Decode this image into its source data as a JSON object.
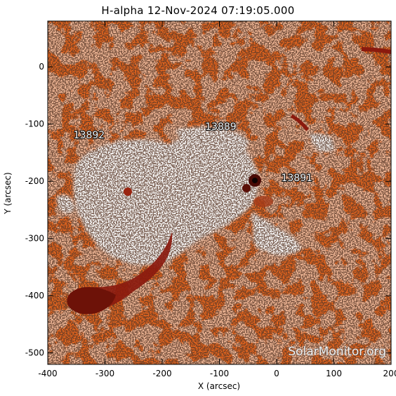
{
  "title": "H-alpha 12-Nov-2024 07:19:05.000",
  "x_axis": {
    "label": "X (arcsec)",
    "range": [
      -400,
      200
    ],
    "ticks": [
      -400,
      -300,
      -200,
      -100,
      0,
      100,
      200
    ]
  },
  "y_axis": {
    "label": "Y (arcsec)",
    "range": [
      -520,
      80
    ],
    "ticks": [
      0,
      -100,
      -200,
      -300,
      -400,
      -500
    ]
  },
  "regions": [
    {
      "label": "13892",
      "x": -355,
      "y": -125
    },
    {
      "label": "13889",
      "x": -125,
      "y": -110
    },
    {
      "label": "13891",
      "x": 8,
      "y": -200
    }
  ],
  "watermark": "SolarMonitor.org",
  "colors": {
    "map_orange": "#e8661e",
    "map_dark": "#8b1a0e",
    "map_bright": "#ffffff",
    "map_speckle": "#1a0a05"
  }
}
